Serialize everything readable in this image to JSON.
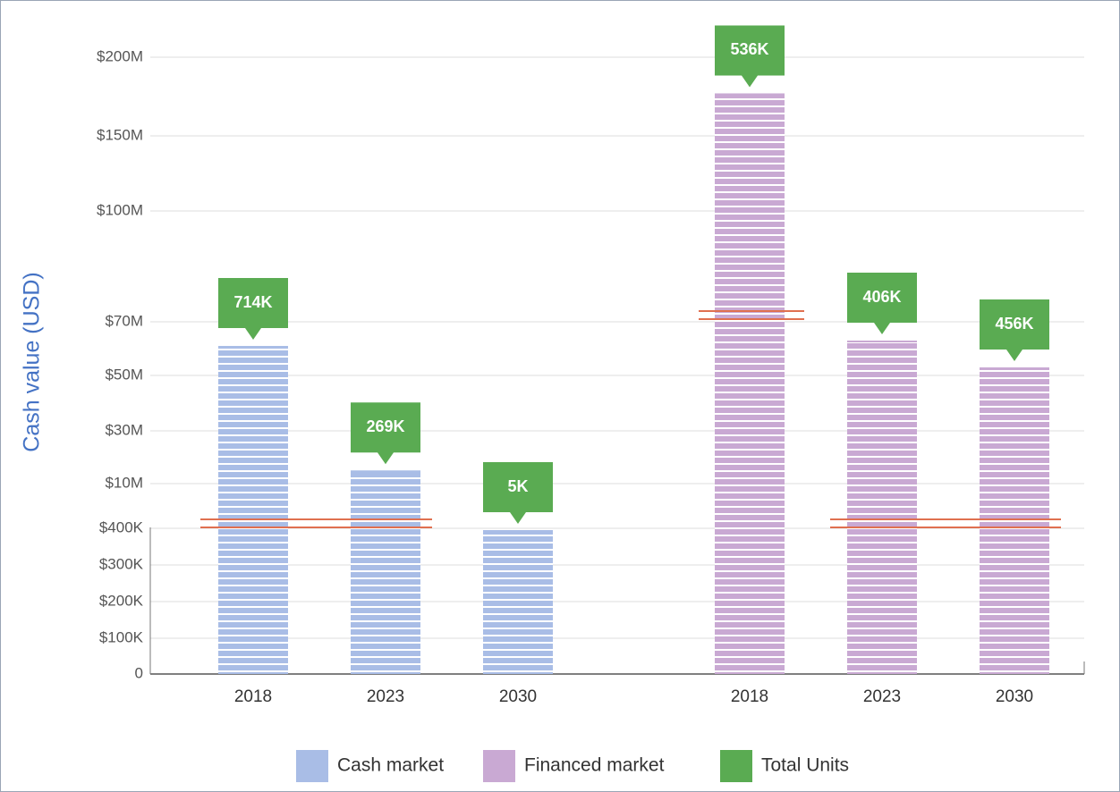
{
  "chart_data": {
    "type": "bar",
    "y_label": "Cash value (USD)",
    "categories": [
      "2018",
      "2023",
      "2030",
      "2018",
      "2023",
      "2030"
    ],
    "series": [
      {
        "name": "Cash market",
        "color": "#a9bde6",
        "values": [
          61000000,
          15000000,
          395000,
          null,
          null,
          null
        ]
      },
      {
        "name": "Financed market",
        "color": "#c9a9d3",
        "values": [
          null,
          null,
          null,
          177000000,
          63000000,
          53000000
        ]
      },
      {
        "name": "Total Units",
        "color": "#5aab52",
        "values": [
          714000,
          269000,
          5000,
          536000,
          406000,
          456000
        ],
        "value_labels": [
          "714K",
          "269K",
          "5K",
          "536K",
          "406K",
          "456K"
        ]
      }
    ],
    "ylim": [
      0,
      200000000
    ],
    "yticks": [
      0,
      {
        "value": 100000,
        "label": "$100K"
      },
      {
        "value": 200000,
        "label": "$200K"
      },
      {
        "value": 300000,
        "label": "$300K"
      },
      {
        "value": 400000,
        "label": "$400K"
      },
      {
        "value": 10000000,
        "label": "$10M"
      },
      {
        "value": 30000000,
        "label": "$30M"
      },
      {
        "value": 50000000,
        "label": "$50M"
      },
      {
        "value": 70000000,
        "label": "$70M"
      },
      {
        "value": 100000000,
        "label": "$100M"
      },
      {
        "value": 150000000,
        "label": "$150M"
      },
      {
        "value": 200000000,
        "label": "$200M"
      }
    ],
    "grid": true
  }
}
